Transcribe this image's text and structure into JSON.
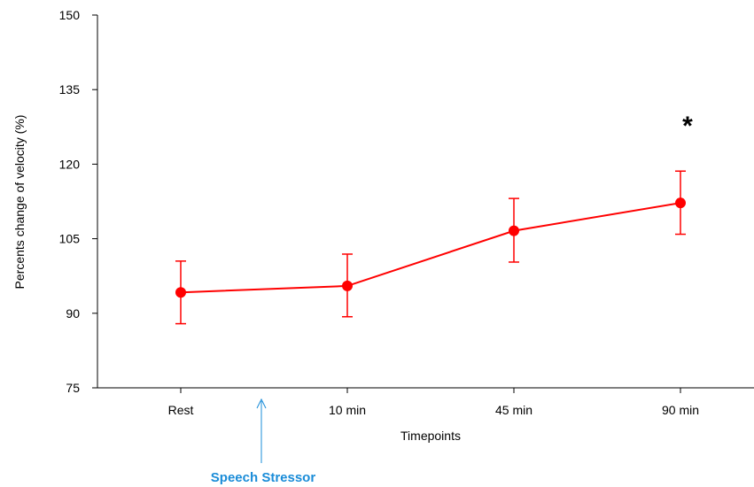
{
  "chart_data": {
    "type": "line",
    "title": "",
    "xlabel": "Timepoints",
    "ylabel": "Percents change of velocity (%)",
    "categories": [
      "Rest",
      "10 min",
      "45 min",
      "90 min"
    ],
    "ylim": [
      75,
      150
    ],
    "yticks": [
      "75",
      "90",
      "105",
      "120",
      "135",
      "150"
    ],
    "grid": false,
    "legend": "none",
    "series": [
      {
        "values": [
          94.2,
          95.5,
          106.6,
          112.2
        ],
        "error_low": [
          87.9,
          89.3,
          100.3,
          105.9
        ],
        "error_high": [
          100.5,
          101.9,
          113.1,
          118.6
        ],
        "color": "#ff0000"
      }
    ],
    "annotations": {
      "stressor_label": "Speech Stressor",
      "stressor_arrow_color": "#1a8cd8",
      "significance_mark": "*",
      "significance_category": "90 min"
    }
  }
}
